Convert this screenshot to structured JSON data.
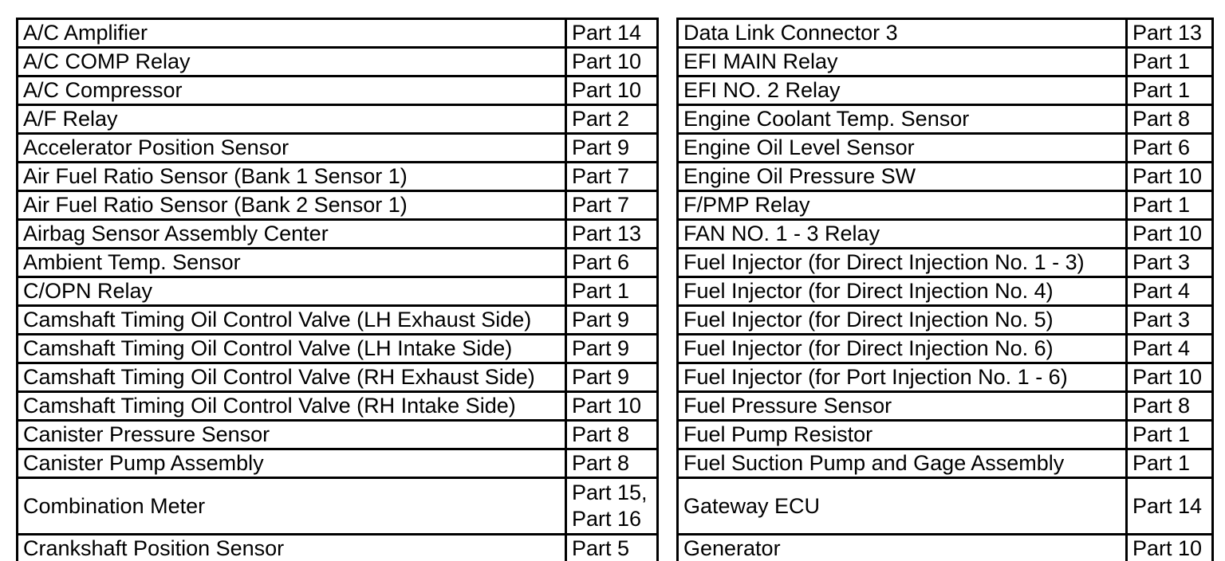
{
  "page": {
    "background_color": "#ffffff",
    "line_color": "#000000",
    "text_color": "#000000",
    "description": "Two-column component-to-part index table"
  },
  "tables": [
    {
      "id": "left",
      "rows": [
        {
          "component": "A/C Amplifier",
          "part": "Part 14"
        },
        {
          "component": "A/C COMP Relay",
          "part": "Part 10"
        },
        {
          "component": "A/C Compressor",
          "part": "Part 10"
        },
        {
          "component": "A/F Relay",
          "part": "Part 2"
        },
        {
          "component": "Accelerator Position Sensor",
          "part": "Part 9"
        },
        {
          "component": "Air Fuel Ratio Sensor (Bank 1 Sensor 1)",
          "part": "Part 7"
        },
        {
          "component": "Air Fuel Ratio Sensor (Bank 2 Sensor 1)",
          "part": "Part 7"
        },
        {
          "component": "Airbag Sensor Assembly Center",
          "part": "Part 13"
        },
        {
          "component": "Ambient Temp. Sensor",
          "part": "Part 6"
        },
        {
          "component": "C/OPN Relay",
          "part": "Part 1"
        },
        {
          "component": "Camshaft Timing Oil Control Valve (LH Exhaust Side)",
          "part": "Part 9"
        },
        {
          "component": "Camshaft Timing Oil Control Valve (LH Intake Side)",
          "part": "Part 9"
        },
        {
          "component": "Camshaft Timing Oil Control Valve (RH Exhaust Side)",
          "part": "Part 9"
        },
        {
          "component": "Camshaft Timing Oil Control Valve (RH Intake Side)",
          "part": "Part 10"
        },
        {
          "component": "Canister Pressure Sensor",
          "part": "Part 8"
        },
        {
          "component": "Canister Pump Assembly",
          "part": "Part 8"
        },
        {
          "component": "Combination Meter",
          "part": "Part 15,\nPart 16"
        },
        {
          "component": "Crankshaft Position Sensor",
          "part": "Part 5"
        }
      ]
    },
    {
      "id": "right",
      "rows": [
        {
          "component": "Data Link Connector 3",
          "part": "Part 13"
        },
        {
          "component": "EFI MAIN Relay",
          "part": "Part 1"
        },
        {
          "component": "EFI NO. 2 Relay",
          "part": "Part 1"
        },
        {
          "component": "Engine Coolant Temp. Sensor",
          "part": "Part 8"
        },
        {
          "component": "Engine Oil Level Sensor",
          "part": "Part 6"
        },
        {
          "component": "Engine Oil Pressure SW",
          "part": "Part 10"
        },
        {
          "component": "F/PMP Relay",
          "part": "Part 1"
        },
        {
          "component": "FAN NO. 1 - 3 Relay",
          "part": "Part 10"
        },
        {
          "component": "Fuel Injector (for Direct Injection No. 1 - 3)",
          "part": "Part 3"
        },
        {
          "component": "Fuel Injector (for Direct Injection No. 4)",
          "part": "Part 4"
        },
        {
          "component": "Fuel Injector (for Direct Injection No. 5)",
          "part": "Part 3"
        },
        {
          "component": "Fuel Injector (for Direct Injection No. 6)",
          "part": "Part 4"
        },
        {
          "component": "Fuel Injector (for Port Injection No. 1 - 6)",
          "part": "Part 10"
        },
        {
          "component": "Fuel Pressure Sensor",
          "part": "Part 8"
        },
        {
          "component": "Fuel Pump Resistor",
          "part": "Part 1"
        },
        {
          "component": "Fuel Suction Pump and Gage Assembly",
          "part": "Part 1"
        },
        {
          "component": "Gateway ECU",
          "part": "Part 14"
        },
        {
          "component": "Generator",
          "part": "Part 10"
        }
      ]
    }
  ]
}
